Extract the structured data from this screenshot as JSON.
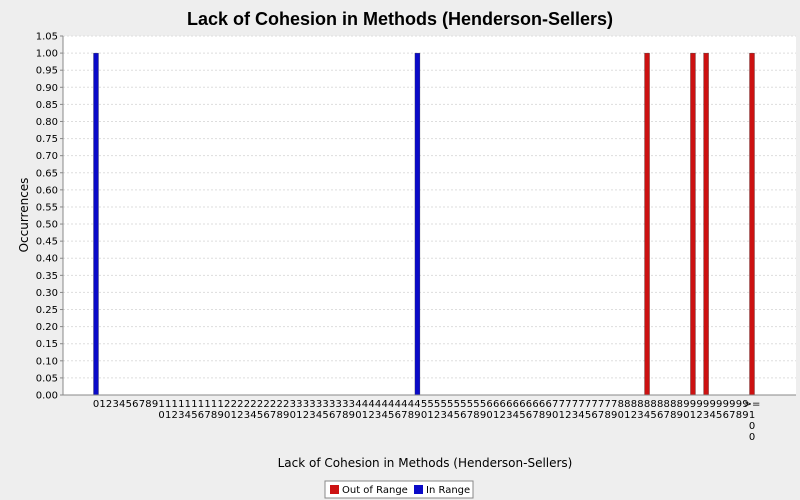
{
  "chart_data": {
    "type": "bar",
    "title": "Lack of Cohesion in Methods (Henderson-Sellers)",
    "xlabel": "Lack of Cohesion in Methods (Henderson-Sellers)",
    "ylabel": "Occurrences",
    "ylim": [
      0,
      1.05
    ],
    "ytick_step": 0.05,
    "grid": true,
    "legend_position": "bottom",
    "categories": [
      "0",
      "1",
      "2",
      "3",
      "4",
      "5",
      "6",
      "7",
      "8",
      "9",
      "10",
      "11",
      "12",
      "13",
      "14",
      "15",
      "16",
      "17",
      "18",
      "19",
      "20",
      "21",
      "22",
      "23",
      "24",
      "25",
      "26",
      "27",
      "28",
      "29",
      "30",
      "31",
      "32",
      "33",
      "34",
      "35",
      "36",
      "37",
      "38",
      "39",
      "40",
      "41",
      "42",
      "43",
      "44",
      "45",
      "46",
      "47",
      "48",
      "49",
      "50",
      "51",
      "52",
      "53",
      "54",
      "55",
      "56",
      "57",
      "58",
      "59",
      "60",
      "61",
      "62",
      "63",
      "64",
      "65",
      "66",
      "67",
      "68",
      "69",
      "70",
      "71",
      "72",
      "73",
      "74",
      "75",
      "76",
      "77",
      "78",
      "79",
      "80",
      "81",
      "82",
      "83",
      "84",
      "85",
      "86",
      "87",
      "88",
      "89",
      "90",
      "91",
      "92",
      "93",
      "94",
      "95",
      "96",
      "97",
      "98",
      "99",
      ">=100"
    ],
    "series": [
      {
        "name": "Out of Range",
        "color": "#cc1111",
        "values": [
          0,
          0,
          0,
          0,
          0,
          0,
          0,
          0,
          0,
          0,
          0,
          0,
          0,
          0,
          0,
          0,
          0,
          0,
          0,
          0,
          0,
          0,
          0,
          0,
          0,
          0,
          0,
          0,
          0,
          0,
          0,
          0,
          0,
          0,
          0,
          0,
          0,
          0,
          0,
          0,
          0,
          0,
          0,
          0,
          0,
          0,
          0,
          0,
          0,
          0,
          0,
          0,
          0,
          0,
          0,
          0,
          0,
          0,
          0,
          0,
          0,
          0,
          0,
          0,
          0,
          0,
          0,
          0,
          0,
          0,
          0,
          0,
          0,
          0,
          0,
          0,
          0,
          0,
          0,
          0,
          0,
          0,
          0,
          0,
          1,
          0,
          0,
          0,
          0,
          0,
          0,
          1,
          0,
          1,
          0,
          0,
          0,
          0,
          0,
          0,
          1
        ]
      },
      {
        "name": "In Range",
        "color": "#0a0ac8",
        "values": [
          1,
          0,
          0,
          0,
          0,
          0,
          0,
          0,
          0,
          0,
          0,
          0,
          0,
          0,
          0,
          0,
          0,
          0,
          0,
          0,
          0,
          0,
          0,
          0,
          0,
          0,
          0,
          0,
          0,
          0,
          0,
          0,
          0,
          0,
          0,
          0,
          0,
          0,
          0,
          0,
          0,
          0,
          0,
          0,
          0,
          0,
          0,
          0,
          0,
          1,
          0,
          0,
          0,
          0,
          0,
          0,
          0,
          0,
          0,
          0,
          0,
          0,
          0,
          0,
          0,
          0,
          0,
          0,
          0,
          0,
          0,
          0,
          0,
          0,
          0,
          0,
          0,
          0,
          0,
          0,
          0,
          0,
          0,
          0,
          0,
          0,
          0,
          0,
          0,
          0,
          0,
          0,
          0,
          0,
          0,
          0,
          0,
          0,
          0,
          0,
          0
        ]
      }
    ]
  }
}
